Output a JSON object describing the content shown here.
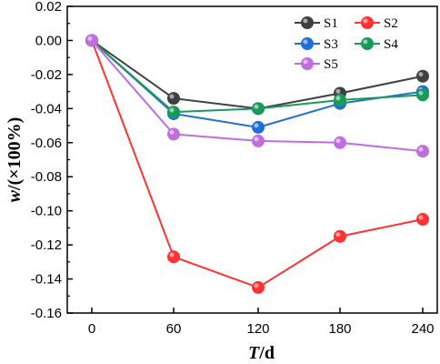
{
  "chart_data": {
    "type": "line",
    "x": [
      0,
      60,
      120,
      180,
      240
    ],
    "xlabel": {
      "italic": "T",
      "rest": "/d"
    },
    "ylabel": {
      "italic": "w",
      "rest": "/(×100%)"
    },
    "xticks": [
      "0",
      "60",
      "120",
      "180",
      "240"
    ],
    "yticks": [
      "0.02",
      "0.00",
      "-0.02",
      "-0.04",
      "-0.06",
      "-0.08",
      "-0.10",
      "-0.12",
      "-0.14",
      "-0.16"
    ],
    "ylim": [
      -0.16,
      0.02
    ],
    "legend_position": "top-right",
    "grid": false,
    "series": [
      {
        "name": "S1",
        "color": "#404040",
        "values": [
          0.0,
          -0.034,
          -0.04,
          -0.031,
          -0.021
        ]
      },
      {
        "name": "S2",
        "color": "#ff3333",
        "values": [
          0.0,
          -0.127,
          -0.145,
          -0.115,
          -0.105
        ]
      },
      {
        "name": "S3",
        "color": "#1f6fd6",
        "values": [
          0.0,
          -0.043,
          -0.051,
          -0.037,
          -0.03
        ]
      },
      {
        "name": "S4",
        "color": "#1a9a5a",
        "values": [
          0.0,
          -0.042,
          -0.04,
          -0.035,
          -0.032
        ]
      },
      {
        "name": "S5",
        "color": "#bf6ee0",
        "values": [
          0.0,
          -0.055,
          -0.059,
          -0.06,
          -0.065
        ]
      }
    ]
  }
}
